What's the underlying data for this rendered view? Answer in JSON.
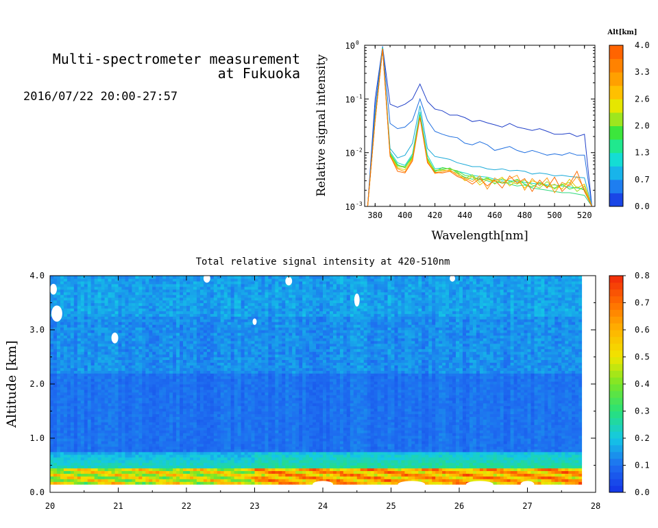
{
  "header": {
    "title_line1": "Multi-spectrometer measurement",
    "title_line2": "at Fukuoka",
    "datetime": "2016/07/22 20:00-27:57"
  },
  "chart_data": [
    {
      "type": "line",
      "title": "",
      "xlabel": "Wavelength[nm]",
      "ylabel": "Relative signal intensity",
      "xlim": [
        373,
        527
      ],
      "ylim": [
        0.001,
        1
      ],
      "yscale": "log",
      "x_ticks": [
        "380",
        "400",
        "420",
        "440",
        "460",
        "480",
        "500",
        "520"
      ],
      "y_ticks": [
        "10",
        "10",
        "10",
        "10"
      ],
      "y_tick_exponents": [
        "0",
        "-1",
        "-2",
        "-3"
      ],
      "legend_title": "Alt[km]",
      "colorbar_ticks": [
        "4.0",
        "3.3",
        "2.6",
        "2.0",
        "1.3",
        "0.7",
        "0.0"
      ],
      "x": [
        375,
        380,
        385,
        390,
        395,
        400,
        405,
        410,
        415,
        420,
        425,
        430,
        435,
        440,
        445,
        450,
        455,
        460,
        465,
        470,
        475,
        480,
        485,
        490,
        495,
        500,
        505,
        510,
        515,
        520,
        525
      ],
      "series": [
        {
          "color": "#1f3fc8",
          "values": [
            0.001,
            0.1,
            0.95,
            0.08,
            0.07,
            0.08,
            0.1,
            0.19,
            0.09,
            0.065,
            0.06,
            0.05,
            0.05,
            0.045,
            0.038,
            0.04,
            0.036,
            0.033,
            0.03,
            0.035,
            0.03,
            0.028,
            0.026,
            0.028,
            0.025,
            0.022,
            0.022,
            0.023,
            0.02,
            0.022,
            0.001
          ]
        },
        {
          "color": "#1e6ee0",
          "values": [
            0.001,
            0.07,
            0.95,
            0.035,
            0.028,
            0.03,
            0.04,
            0.1,
            0.04,
            0.025,
            0.022,
            0.02,
            0.019,
            0.015,
            0.014,
            0.016,
            0.014,
            0.011,
            0.012,
            0.013,
            0.011,
            0.01,
            0.011,
            0.01,
            0.009,
            0.0095,
            0.009,
            0.01,
            0.009,
            0.009,
            0.001
          ]
        },
        {
          "color": "#19a9d8",
          "values": [
            0.001,
            0.05,
            0.92,
            0.012,
            0.008,
            0.009,
            0.015,
            0.075,
            0.012,
            0.0085,
            0.008,
            0.0075,
            0.0065,
            0.006,
            0.0055,
            0.0055,
            0.005,
            0.0048,
            0.005,
            0.0046,
            0.0047,
            0.0045,
            0.004,
            0.0042,
            0.004,
            0.0037,
            0.0038,
            0.0036,
            0.0035,
            0.0034,
            0.001
          ]
        },
        {
          "color": "#11d6c6",
          "values": [
            0.001,
            0.045,
            0.9,
            0.0105,
            0.0065,
            0.0058,
            0.0095,
            0.058,
            0.009,
            0.005,
            0.0052,
            0.005,
            0.0045,
            0.0042,
            0.0038,
            0.0036,
            0.0035,
            0.0032,
            0.0031,
            0.003,
            0.0029,
            0.0028,
            0.0027,
            0.0026,
            0.0025,
            0.0025,
            0.0024,
            0.0023,
            0.0022,
            0.0021,
            0.001
          ]
        },
        {
          "color": "#2ed87c",
          "values": [
            0.001,
            0.042,
            0.88,
            0.0095,
            0.0058,
            0.0055,
            0.0088,
            0.052,
            0.008,
            0.0046,
            0.0048,
            0.0052,
            0.0042,
            0.0035,
            0.0032,
            0.0034,
            0.003,
            0.0027,
            0.0029,
            0.0026,
            0.0024,
            0.0025,
            0.0022,
            0.0021,
            0.002,
            0.0019,
            0.0018,
            0.0018,
            0.0017,
            0.0016,
            0.001
          ]
        },
        {
          "color": "#3fe03a",
          "values": [
            0.001,
            0.04,
            0.87,
            0.0098,
            0.006,
            0.0052,
            0.0085,
            0.05,
            0.0078,
            0.0044,
            0.0053,
            0.0049,
            0.0046,
            0.0038,
            0.0036,
            0.0031,
            0.0033,
            0.003,
            0.0027,
            0.0028,
            0.0032,
            0.0026,
            0.0023,
            0.0028,
            0.0024,
            0.0022,
            0.0026,
            0.0021,
            0.0023,
            0.002,
            0.001
          ]
        },
        {
          "color": "#9be020",
          "values": [
            0.001,
            0.04,
            0.86,
            0.0092,
            0.0055,
            0.0054,
            0.008,
            0.048,
            0.0075,
            0.0047,
            0.0049,
            0.0051,
            0.0044,
            0.0033,
            0.0039,
            0.0028,
            0.0035,
            0.0026,
            0.0033,
            0.0029,
            0.0026,
            0.0031,
            0.0025,
            0.0022,
            0.0029,
            0.0021,
            0.0025,
            0.0028,
            0.0019,
            0.0024,
            0.001
          ]
        },
        {
          "color": "#e8c800",
          "values": [
            0.001,
            0.04,
            0.86,
            0.009,
            0.0052,
            0.0048,
            0.0078,
            0.047,
            0.0072,
            0.0042,
            0.0047,
            0.0046,
            0.0041,
            0.003,
            0.0036,
            0.0025,
            0.0032,
            0.0029,
            0.0035,
            0.0024,
            0.0031,
            0.0022,
            0.003,
            0.0027,
            0.0023,
            0.0026,
            0.0021,
            0.0032,
            0.0022,
            0.0026,
            0.001
          ]
        },
        {
          "color": "#ff9a10",
          "values": [
            0.001,
            0.04,
            0.85,
            0.0085,
            0.005,
            0.0044,
            0.0075,
            0.046,
            0.0068,
            0.0041,
            0.0044,
            0.0048,
            0.0038,
            0.0034,
            0.0029,
            0.0037,
            0.0021,
            0.0034,
            0.0027,
            0.0033,
            0.0038,
            0.002,
            0.0033,
            0.0024,
            0.0034,
            0.0018,
            0.0028,
            0.0024,
            0.0036,
            0.0021,
            0.001
          ]
        },
        {
          "color": "#ff6a00",
          "values": [
            0.001,
            0.04,
            0.85,
            0.0088,
            0.0045,
            0.0042,
            0.007,
            0.045,
            0.0065,
            0.0043,
            0.0042,
            0.0045,
            0.0036,
            0.0032,
            0.0026,
            0.0033,
            0.0024,
            0.0031,
            0.0022,
            0.0037,
            0.0027,
            0.0033,
            0.0019,
            0.0031,
            0.0022,
            0.0035,
            0.0019,
            0.0026,
            0.0045,
            0.0019,
            0.001
          ]
        }
      ]
    },
    {
      "type": "heatmap",
      "title": "Total relative signal intensity at 420-510nm",
      "xlabel": "",
      "ylabel": "Altitude [km]",
      "xlim": [
        20,
        28
      ],
      "ylim": [
        0.0,
        4.0
      ],
      "x_ticks": [
        "20",
        "21",
        "22",
        "23",
        "24",
        "25",
        "26",
        "27",
        "28"
      ],
      "y_ticks": [
        "0.0",
        "1.0",
        "2.0",
        "3.0",
        "4.0"
      ],
      "colorbar_ticks": [
        "0.8",
        "0.7",
        "0.6",
        "0.5",
        "0.4",
        "0.3",
        "0.2",
        "0.1",
        "0.0"
      ],
      "colorbar_range": [
        0.0,
        0.8
      ],
      "data_x_range": [
        20.0,
        27.8
      ]
    }
  ]
}
